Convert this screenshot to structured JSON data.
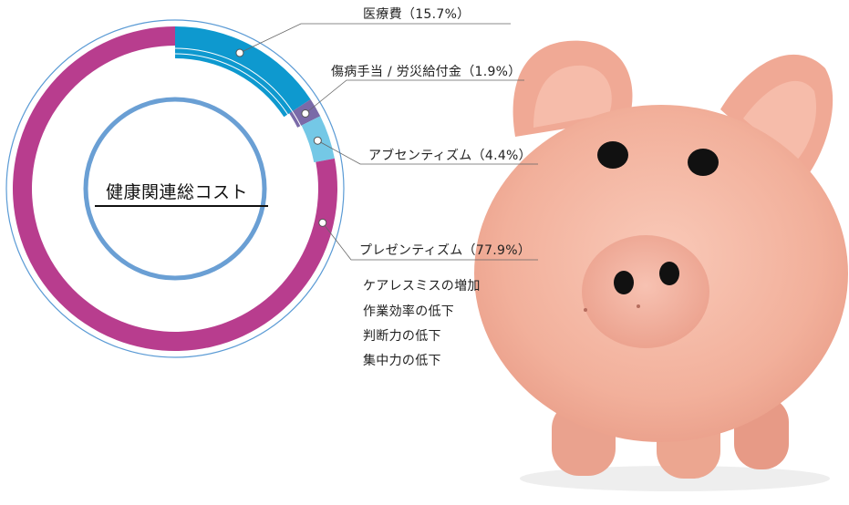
{
  "center_label": "健康関連総コスト",
  "colors": {
    "presenteeism": "#b83d8e",
    "medical": "#0e99cf",
    "injury": "#7a6aa8",
    "absenteeism": "#74c8e6",
    "outer_ring": "#5b9bd5",
    "inner_ring": "#6a9fd4",
    "inner_lines": "#9a9a9a"
  },
  "presenteeism_breakdown": [
    "ケアレスミスの増加",
    "作業効率の低下",
    "判断力の低下",
    "集中力の低下"
  ],
  "chart_data": {
    "type": "pie",
    "title": "",
    "series": [
      {
        "name": "医療費",
        "value": 15.7,
        "label": "医療費（15.7%）"
      },
      {
        "name": "傷病手当 / 労災給付金",
        "value": 1.9,
        "label": "傷病手当 / 労災給付金（1.9%）"
      },
      {
        "name": "アブセンティズム",
        "value": 4.4,
        "label": "アブセンティズム（4.4%）"
      },
      {
        "name": "プレゼンティズム",
        "value": 77.9,
        "label": "プレゼンティズム（77.9%）"
      }
    ]
  }
}
